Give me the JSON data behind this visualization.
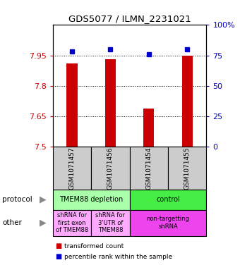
{
  "title": "GDS5077 / ILMN_2231021",
  "samples": [
    "GSM1071457",
    "GSM1071456",
    "GSM1071454",
    "GSM1071455"
  ],
  "red_values": [
    7.91,
    7.93,
    7.69,
    7.95
  ],
  "blue_values": [
    78,
    80,
    76,
    80
  ],
  "y_min": 7.5,
  "y_max": 8.1,
  "y_ticks": [
    7.5,
    7.65,
    7.8,
    7.95
  ],
  "y_tick_labels": [
    "7.5",
    "7.65",
    "7.8",
    "7.95"
  ],
  "y2_ticks": [
    0,
    25,
    50,
    75,
    100
  ],
  "y2_tick_labels": [
    "0",
    "25",
    "50",
    "75",
    "100%"
  ],
  "red_color": "#cc0000",
  "blue_color": "#0000cc",
  "protocol_labels": [
    "TMEM88 depletion",
    "control"
  ],
  "protocol_colors": [
    "#aaffaa",
    "#44ee44"
  ],
  "other_labels": [
    "shRNA for\nfirst exon\nof TMEM88",
    "shRNA for\n3'UTR of\nTMEM88",
    "non-targetting\nshRNA"
  ],
  "other_colors": [
    "#ffaaff",
    "#ffaaff",
    "#ee44ee"
  ],
  "sample_bg_color": "#cccccc",
  "legend_red": "transformed count",
  "legend_blue": "percentile rank within the sample"
}
